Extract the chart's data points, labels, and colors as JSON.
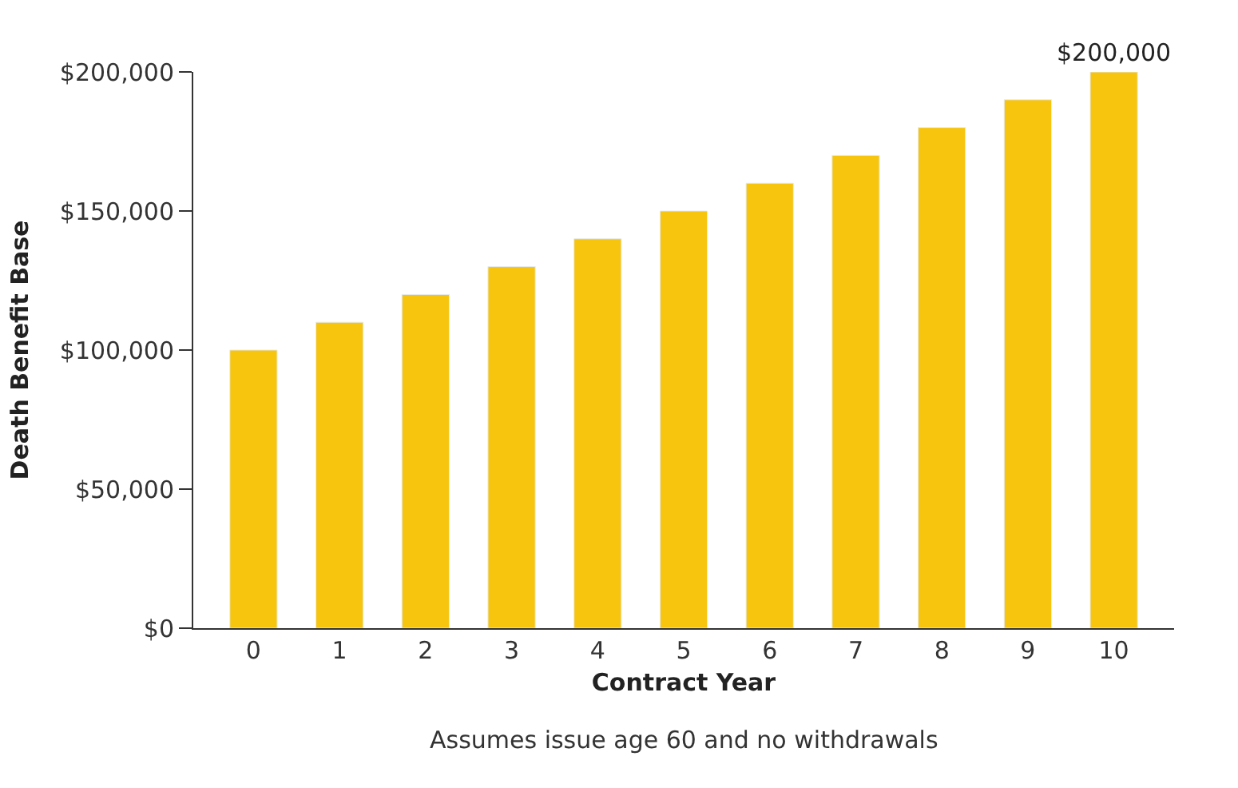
{
  "chart_data": {
    "type": "bar",
    "xlabel": "Contract Year",
    "ylabel": "Death Benefit Base",
    "categories": [
      "0",
      "1",
      "2",
      "3",
      "4",
      "5",
      "6",
      "7",
      "8",
      "9",
      "10"
    ],
    "values": [
      100000,
      110000,
      120000,
      130000,
      140000,
      150000,
      160000,
      170000,
      180000,
      190000,
      200000
    ],
    "value_labels": [
      null,
      null,
      null,
      null,
      null,
      null,
      null,
      null,
      null,
      null,
      "$200,000"
    ],
    "color": "#f7c50d",
    "ylim": [
      0,
      200000
    ],
    "yticks": [
      {
        "value": 0,
        "label": "$0"
      },
      {
        "value": 50000,
        "label": "$50,000"
      },
      {
        "value": 100000,
        "label": "$100,000"
      },
      {
        "value": 150000,
        "label": "$150,000"
      },
      {
        "value": 200000,
        "label": "$200,000"
      }
    ],
    "legend": false,
    "annotations": [
      "Assumes issue age 60 and no withdrawals"
    ]
  }
}
